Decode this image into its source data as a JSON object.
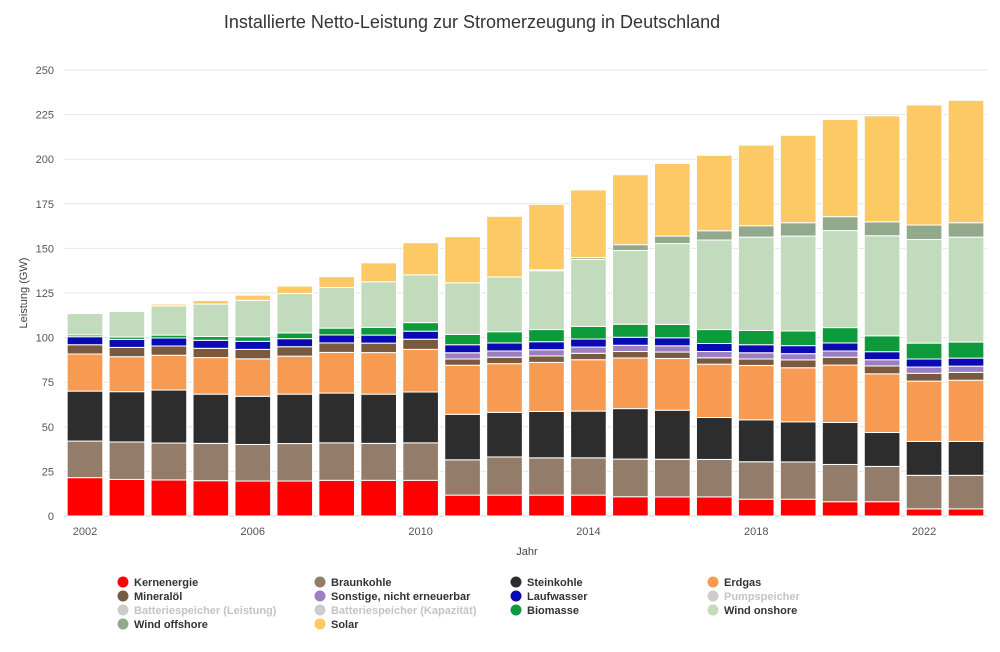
{
  "chart_data": {
    "type": "bar",
    "stacked": true,
    "title": "Installierte Netto-Leistung zur Stromerzeugung in Deutschland",
    "xlabel": "Jahr",
    "ylabel": "Leistung (GW)",
    "ylim": [
      0,
      250
    ],
    "yticks": [
      0,
      25,
      50,
      75,
      100,
      125,
      150,
      175,
      200,
      225,
      250
    ],
    "xticks": [
      "2002",
      "2006",
      "2010",
      "2014",
      "2018",
      "2022"
    ],
    "grid": true,
    "legend_position": "bottom",
    "categories": [
      2002,
      2003,
      2004,
      2005,
      2006,
      2007,
      2008,
      2009,
      2010,
      2011,
      2012,
      2013,
      2014,
      2015,
      2016,
      2017,
      2018,
      2019,
      2020,
      2021,
      2022,
      2023
    ],
    "series": [
      {
        "name": "Kernenergie",
        "color": "#ff0000",
        "values": [
          21.5,
          20.5,
          20.2,
          19.8,
          19.6,
          19.6,
          20.0,
          20.0,
          20.0,
          11.7,
          11.7,
          11.7,
          11.7,
          10.8,
          10.7,
          10.7,
          9.4,
          9.4,
          8.0,
          8.0,
          4.0,
          4.0
        ]
      },
      {
        "name": "Braunkohle",
        "color": "#937d6a",
        "values": [
          20.5,
          21.0,
          20.7,
          20.9,
          20.5,
          21.0,
          21.0,
          20.7,
          21.0,
          19.8,
          21.4,
          20.9,
          20.9,
          21.1,
          21.1,
          21.0,
          21.0,
          20.9,
          20.9,
          19.8,
          18.8,
          18.8
        ]
      },
      {
        "name": "Steinkohle",
        "color": "#2d2d2d",
        "values": [
          28.0,
          28.2,
          29.7,
          27.6,
          27.0,
          27.7,
          27.9,
          27.6,
          28.5,
          25.5,
          25.0,
          26.0,
          26.2,
          28.3,
          27.5,
          23.5,
          23.5,
          22.5,
          23.5,
          19.0,
          19.0,
          19.0
        ]
      },
      {
        "name": "Erdgas",
        "color": "#f79b52",
        "values": [
          20.8,
          19.6,
          19.5,
          20.5,
          21.0,
          21.3,
          22.8,
          23.3,
          23.9,
          27.5,
          27.3,
          27.5,
          28.8,
          28.4,
          29.0,
          29.9,
          30.5,
          30.3,
          32.2,
          32.9,
          33.8,
          34.3
        ]
      },
      {
        "name": "Mineralöl",
        "color": "#7a5a3f",
        "values": [
          5.2,
          5.2,
          5.2,
          5.2,
          5.3,
          5.3,
          5.3,
          5.3,
          5.7,
          3.5,
          3.6,
          3.6,
          3.6,
          3.6,
          3.6,
          3.6,
          3.6,
          4.4,
          4.4,
          4.4,
          4.4,
          4.4
        ]
      },
      {
        "name": "Sonstige, nicht erneuerbar",
        "color": "#9b7fc0",
        "values": [
          0,
          0,
          0,
          0,
          0,
          0,
          0,
          0,
          0,
          3.5,
          3.5,
          3.5,
          3.5,
          3.5,
          3.5,
          3.5,
          3.5,
          3.5,
          3.5,
          3.5,
          3.5,
          3.5
        ]
      },
      {
        "name": "Laufwasser",
        "color": "#0a0ab4",
        "values": [
          4.5,
          4.5,
          4.5,
          4.5,
          4.5,
          4.5,
          4.5,
          4.5,
          4.5,
          4.5,
          4.5,
          4.5,
          4.5,
          4.5,
          4.5,
          4.5,
          4.5,
          4.5,
          4.5,
          4.5,
          4.5,
          4.5
        ]
      },
      {
        "name": "Pumpspeicher",
        "color": "#c8c8c8",
        "values": [
          0,
          0,
          0,
          0,
          0,
          0,
          0,
          0,
          0,
          0,
          0,
          0,
          0,
          0,
          0,
          0,
          0,
          0,
          0,
          0,
          0,
          0
        ]
      },
      {
        "name": "Batteriespeicher (Leistung)",
        "color": "#c8c8c8",
        "values": [
          0,
          0,
          0,
          0,
          0,
          0,
          0,
          0,
          0,
          0,
          0,
          0,
          0,
          0,
          0,
          0,
          0,
          0,
          0,
          0,
          0,
          0
        ]
      },
      {
        "name": "Batteriespeicher (Kapazität)",
        "color": "#c8c8c8",
        "values": [
          0,
          0,
          0,
          0,
          0,
          0,
          0,
          0,
          0,
          0,
          0,
          0,
          0,
          0,
          0,
          0,
          0,
          0,
          0,
          0,
          0,
          0
        ]
      },
      {
        "name": "Biomasse",
        "color": "#0d9a3a",
        "values": [
          1.0,
          1.3,
          1.6,
          2.1,
          2.6,
          3.2,
          3.8,
          4.3,
          4.8,
          5.8,
          6.3,
          6.8,
          7.1,
          7.3,
          7.5,
          7.8,
          8.0,
          8.2,
          8.6,
          8.9,
          8.9,
          9.0
        ]
      },
      {
        "name": "Wind onshore",
        "color": "#c3dbbd",
        "values": [
          12.0,
          14.4,
          16.4,
          18.2,
          20.4,
          22.1,
          22.8,
          25.6,
          26.8,
          28.9,
          30.7,
          33.0,
          37.6,
          41.3,
          45.3,
          50.2,
          52.3,
          53.2,
          54.4,
          56.1,
          58.1,
          58.8
        ]
      },
      {
        "name": "Wind offshore",
        "color": "#92a98b",
        "values": [
          0,
          0,
          0,
          0,
          0,
          0,
          0,
          0,
          0,
          0,
          0,
          0.5,
          1.0,
          3.3,
          4.2,
          5.2,
          6.4,
          7.5,
          7.8,
          7.8,
          8.1,
          8.1
        ]
      },
      {
        "name": "Solar",
        "color": "#fcc964",
        "values": [
          0.2,
          0.4,
          1.0,
          2.0,
          2.9,
          4.2,
          6.1,
          10.6,
          18.0,
          25.9,
          34.0,
          36.7,
          37.9,
          39.2,
          40.7,
          42.3,
          45.2,
          49.0,
          54.4,
          59.4,
          67.3,
          68.6
        ]
      }
    ]
  },
  "legend": [
    {
      "label": "Kernenergie",
      "color": "#ff0000",
      "active": true
    },
    {
      "label": "Braunkohle",
      "color": "#937d6a",
      "active": true
    },
    {
      "label": "Steinkohle",
      "color": "#2d2d2d",
      "active": true
    },
    {
      "label": "Erdgas",
      "color": "#f79b52",
      "active": true
    },
    {
      "label": "Mineralöl",
      "color": "#7a5a3f",
      "active": true
    },
    {
      "label": "Sonstige, nicht erneuerbar",
      "color": "#9b7fc0",
      "active": true
    },
    {
      "label": "Laufwasser",
      "color": "#0a0ab4",
      "active": true
    },
    {
      "label": "Pumpspeicher",
      "color": "#c8c8c8",
      "active": false
    },
    {
      "label": "Batteriespeicher (Leistung)",
      "color": "#c8c8c8",
      "active": false
    },
    {
      "label": "Batteriespeicher (Kapazität)",
      "color": "#c8c8c8",
      "active": false
    },
    {
      "label": "Biomasse",
      "color": "#0d9a3a",
      "active": true
    },
    {
      "label": "Wind onshore",
      "color": "#c3dbbd",
      "active": true
    },
    {
      "label": "Wind offshore",
      "color": "#92a98b",
      "active": true
    },
    {
      "label": "Solar",
      "color": "#fcc964",
      "active": true
    }
  ]
}
